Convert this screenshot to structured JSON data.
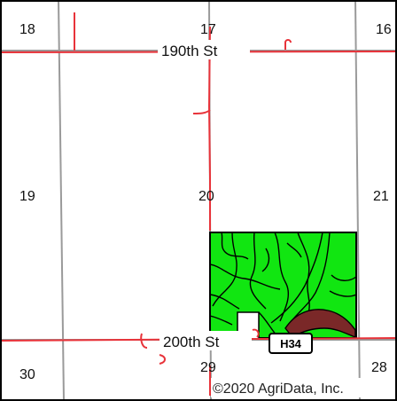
{
  "section_numbers": [
    {
      "id": "s18",
      "label": "18"
    },
    {
      "id": "s17",
      "label": "17"
    },
    {
      "id": "s16",
      "label": "16"
    },
    {
      "id": "s19",
      "label": "19"
    },
    {
      "id": "s20",
      "label": "20"
    },
    {
      "id": "s21",
      "label": "21"
    },
    {
      "id": "s30",
      "label": "30"
    },
    {
      "id": "s29",
      "label": "29"
    },
    {
      "id": "s28",
      "label": "28"
    }
  ],
  "roads": {
    "north": "190th St",
    "south": "200th St"
  },
  "route_shield": "H34",
  "copyright": "©2020 AgriData, Inc.",
  "colors": {
    "road": "#e8333a",
    "section_line": "#9a9a9a",
    "field_fill": "#11e611",
    "field_outline": "#000000",
    "soil_dark": "#7a2828",
    "map_border": "#000000",
    "background": "#ffffff"
  }
}
